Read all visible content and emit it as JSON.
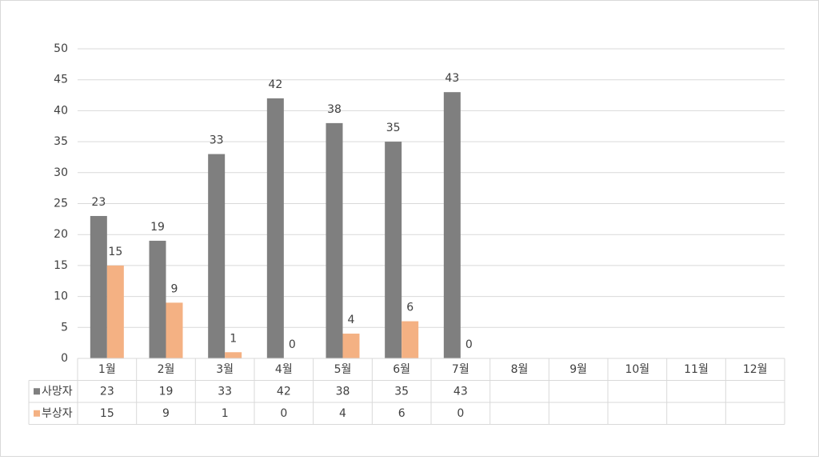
{
  "chart_data": {
    "type": "bar",
    "categories": [
      "1월",
      "2월",
      "3월",
      "4월",
      "5월",
      "6월",
      "7월",
      "8월",
      "9월",
      "10월",
      "11월",
      "12월"
    ],
    "series": [
      {
        "name": "사망자",
        "color": "#7f7f7f",
        "values": [
          23,
          19,
          33,
          42,
          38,
          35,
          43,
          null,
          null,
          null,
          null,
          null
        ]
      },
      {
        "name": "부상자",
        "color": "#f4b183",
        "values": [
          15,
          9,
          1,
          0,
          4,
          6,
          0,
          null,
          null,
          null,
          null,
          null
        ]
      }
    ],
    "ylim": [
      0,
      50
    ],
    "yticks": [
      0,
      5,
      10,
      15,
      20,
      25,
      30,
      35,
      40,
      45,
      50
    ],
    "grid": true,
    "data_table": true
  }
}
